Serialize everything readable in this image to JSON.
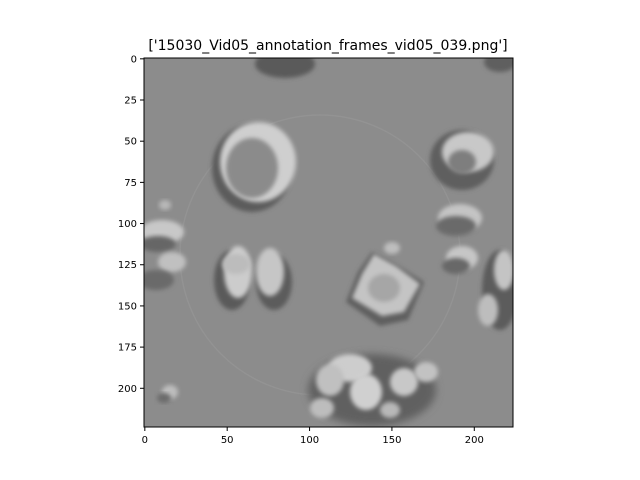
{
  "figure": {
    "title": "['15030_Vid05_annotation_frames_vid05_039.png']"
  },
  "axes": {
    "x_ticks": [
      0,
      50,
      100,
      150,
      200
    ],
    "y_ticks": [
      0,
      25,
      50,
      75,
      100,
      125,
      150,
      175,
      200
    ],
    "x_range": [
      0,
      224
    ],
    "y_range": [
      0,
      224
    ],
    "y_inverted": true
  },
  "image": {
    "description_type": "grayscale DIC microscopy frame",
    "background_color": "#8c8c8c"
  }
}
